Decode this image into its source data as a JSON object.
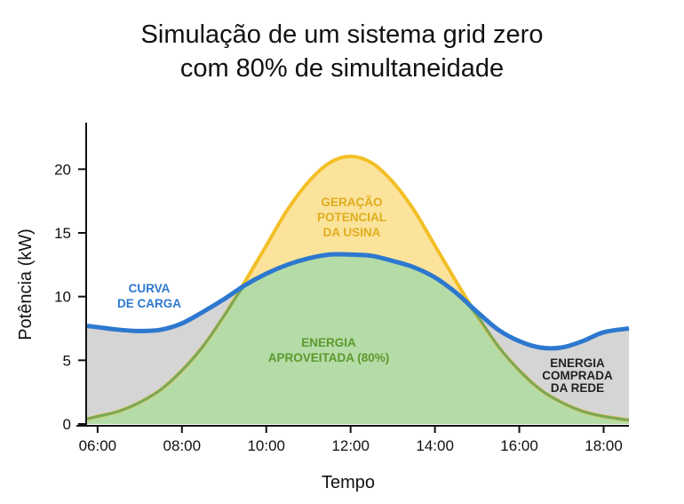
{
  "chart_data": {
    "type": "area",
    "title_line1": "Simulação de um sistema grid zero",
    "title_line2": "com 80% de simultaneidade",
    "xlabel": "Tempo",
    "ylabel": "Potência (kW)",
    "xlim": [
      5.75,
      18.6
    ],
    "ylim": [
      0,
      24
    ],
    "xticks": [
      6,
      8,
      10,
      12,
      14,
      16,
      18
    ],
    "xtick_labels": [
      "06:00",
      "08:00",
      "10:00",
      "12:00",
      "14:00",
      "16:00",
      "18:00"
    ],
    "yticks": [
      0,
      5,
      10,
      15,
      20
    ],
    "ytick_labels": [
      "0",
      "5",
      "10",
      "15",
      "20"
    ],
    "x": [
      5.75,
      6,
      6.5,
      7,
      7.5,
      8,
      8.5,
      9,
      9.5,
      10,
      10.5,
      11,
      11.5,
      12,
      12.5,
      13,
      13.5,
      14,
      14.5,
      15,
      15.5,
      16,
      16.5,
      17,
      17.5,
      18,
      18.6
    ],
    "series": [
      {
        "name": "Geração potencial da usina",
        "color": "#f3bf26",
        "fill": "#fbe39b",
        "values": [
          0.4,
          0.6,
          1.0,
          1.7,
          2.7,
          4.2,
          6.1,
          8.5,
          11.2,
          14.0,
          16.8,
          19.0,
          20.5,
          21.0,
          20.5,
          19.0,
          16.8,
          14.0,
          11.2,
          8.5,
          6.1,
          4.2,
          2.7,
          1.7,
          1.0,
          0.6,
          0.3
        ]
      },
      {
        "name": "Curva de carga",
        "color": "#2d78cf",
        "fill": "#d5d5d5",
        "values": [
          7.7,
          7.6,
          7.4,
          7.3,
          7.4,
          7.9,
          8.8,
          9.8,
          10.9,
          11.8,
          12.5,
          13.0,
          13.3,
          13.3,
          13.2,
          12.8,
          12.3,
          11.5,
          10.3,
          8.8,
          7.4,
          6.5,
          6.0,
          6.0,
          6.5,
          7.2,
          7.5
        ]
      }
    ],
    "used_fill": "#b5dba6",
    "used_line": "#77a85f",
    "annotations": {
      "generation": [
        "GERAÇÃO",
        "POTENCIAL",
        "DA USINA"
      ],
      "load": [
        "CURVA",
        "DE CARGA"
      ],
      "used": [
        "ENERGIA",
        "APROVEITADA (80%)"
      ],
      "grid": [
        "ENERGIA",
        "COMPRADA",
        "DA REDE"
      ]
    },
    "annotation_colors": {
      "generation": "#e0ad1f",
      "load": "#2d78cf",
      "used": "#5b9a2e",
      "grid": "#222222"
    }
  }
}
